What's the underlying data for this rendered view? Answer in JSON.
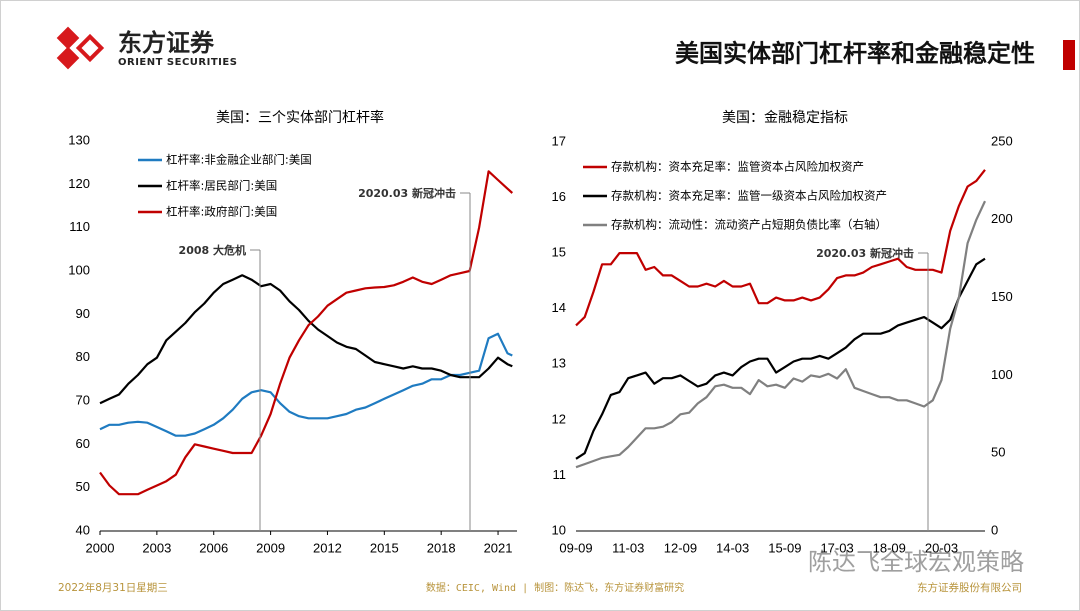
{
  "header": {
    "logo_cn": "东方证券",
    "logo_en": "ORIENT SECURITIES",
    "title": "美国实体部门杠杆率和金融稳定性"
  },
  "chart_data": [
    {
      "type": "line",
      "title": "美国：三个实体部门杠杆率",
      "x": [
        2000,
        2000.5,
        2001,
        2001.5,
        2002,
        2002.5,
        2003,
        2003.5,
        2004,
        2004.5,
        2005,
        2005.5,
        2006,
        2006.5,
        2007,
        2007.5,
        2008,
        2008.5,
        2009,
        2009.5,
        2010,
        2010.5,
        2011,
        2011.5,
        2012,
        2012.5,
        2013,
        2013.5,
        2014,
        2014.5,
        2015,
        2015.5,
        2016,
        2016.5,
        2017,
        2017.5,
        2018,
        2018.5,
        2019,
        2019.5,
        2020,
        2020.5,
        2021,
        2021.5,
        2021.75
      ],
      "xlim": [
        2000,
        2022
      ],
      "xticks": [
        2000,
        2003,
        2006,
        2009,
        2012,
        2015,
        2018,
        2021
      ],
      "ylim": [
        40,
        130
      ],
      "yticks": [
        40,
        50,
        60,
        70,
        80,
        90,
        100,
        110,
        120,
        130
      ],
      "legend": "upper left",
      "series": [
        {
          "name": "杠杆率:非金融企业部门:美国",
          "color": "#1f7bc1",
          "values": [
            63.5,
            64.5,
            64.5,
            65,
            65.2,
            65,
            64,
            63,
            62,
            62,
            62.5,
            63.5,
            64.5,
            66,
            68,
            70.5,
            72,
            72.5,
            72,
            69.5,
            67.5,
            66.5,
            66,
            66,
            66,
            66.5,
            67,
            68,
            68.5,
            69.5,
            70.5,
            71.5,
            72.5,
            73.5,
            74,
            75,
            75,
            76,
            76,
            76.5,
            77,
            84.5,
            85.5,
            81,
            80.5
          ]
        },
        {
          "name": "杠杆率:居民部门:美国",
          "color": "#000000",
          "values": [
            69.5,
            70.5,
            71.5,
            74,
            76,
            78.5,
            80,
            84,
            86,
            88,
            90.5,
            92.5,
            95,
            97,
            98,
            99,
            98,
            96.5,
            97,
            95.5,
            93,
            91,
            88.5,
            86.5,
            85,
            83.5,
            82.5,
            82,
            80.5,
            79,
            78.5,
            78,
            77.5,
            78,
            77.5,
            77.5,
            77,
            76,
            75.5,
            75.5,
            75.5,
            77.5,
            80,
            78.5,
            78
          ]
        },
        {
          "name": "杠杆率:政府部门:美国",
          "color": "#c00000",
          "values": [
            53.5,
            50.5,
            48.5,
            48.5,
            48.5,
            49.5,
            50.5,
            51.5,
            53,
            57,
            60,
            59.5,
            59,
            58.5,
            58,
            58,
            58,
            62,
            67,
            74,
            80,
            84,
            87.5,
            89.5,
            92,
            93.5,
            95,
            95.5,
            96,
            96.2,
            96.3,
            96.7,
            97.5,
            98.5,
            97.5,
            97,
            98,
            99,
            99.5,
            100,
            110,
            123,
            121,
            119,
            118
          ]
        }
      ],
      "annotations": [
        {
          "text": "2008 大危机"
        },
        {
          "text": "2020.03 新冠冲击"
        }
      ]
    },
    {
      "type": "line",
      "title": "美国：金融稳定指标",
      "categories": [
        "09-09",
        null,
        null,
        null,
        null,
        null,
        "11-03",
        null,
        null,
        null,
        null,
        null,
        "12-09",
        null,
        null,
        null,
        null,
        null,
        "14-03",
        null,
        null,
        null,
        null,
        null,
        "15-09",
        null,
        null,
        null,
        null,
        null,
        "17-03",
        null,
        null,
        null,
        null,
        null,
        "18-09",
        null,
        null,
        null,
        null,
        null,
        "20-03",
        null,
        null,
        null,
        null,
        null
      ],
      "ylim": [
        10,
        17
      ],
      "yticks": [
        10,
        11,
        12,
        13,
        14,
        15,
        16,
        17
      ],
      "y2lim": [
        0,
        250
      ],
      "y2ticks": [
        0,
        50,
        100,
        150,
        200,
        250
      ],
      "legend": "upper left",
      "series": [
        {
          "name": "存款机构：资本充足率：监管资本占风险加权资产",
          "color": "#c00000",
          "values": [
            13.7,
            13.85,
            14.3,
            14.8,
            14.8,
            15.0,
            15.0,
            15.0,
            14.7,
            14.75,
            14.6,
            14.6,
            14.5,
            14.4,
            14.4,
            14.45,
            14.4,
            14.5,
            14.4,
            14.4,
            14.45,
            14.1,
            14.1,
            14.2,
            14.15,
            14.15,
            14.2,
            14.15,
            14.2,
            14.35,
            14.55,
            14.6,
            14.6,
            14.65,
            14.75,
            14.8,
            14.85,
            14.9,
            14.75,
            14.7,
            14.7,
            14.7,
            14.65,
            15.4,
            15.85,
            16.2,
            16.3,
            16.5
          ]
        },
        {
          "name": "存款机构：资本充足率：监管一级资本占风险加权资产",
          "color": "#000000",
          "values": [
            11.3,
            11.4,
            11.8,
            12.1,
            12.45,
            12.5,
            12.75,
            12.8,
            12.85,
            12.65,
            12.75,
            12.75,
            12.8,
            12.7,
            12.6,
            12.65,
            12.8,
            12.85,
            12.8,
            12.95,
            13.05,
            13.1,
            13.1,
            12.85,
            12.95,
            13.05,
            13.1,
            13.1,
            13.15,
            13.1,
            13.2,
            13.3,
            13.45,
            13.55,
            13.55,
            13.55,
            13.6,
            13.7,
            13.75,
            13.8,
            13.85,
            13.75,
            13.65,
            13.8,
            14.2,
            14.5,
            14.8,
            14.9
          ]
        },
        {
          "name": "存款机构：流动性：流动资产占短期负债比率（右轴）",
          "color": "#808080",
          "axis": "y2",
          "values": [
            41,
            43,
            45,
            47,
            48,
            49,
            54,
            60,
            66,
            66,
            67,
            70,
            75,
            76,
            82,
            86,
            93,
            94,
            92,
            92,
            88,
            97,
            93,
            94,
            92,
            98,
            96,
            100,
            99,
            101,
            98,
            104,
            92,
            90,
            88,
            86,
            86,
            84,
            84,
            82,
            80,
            84,
            97,
            130,
            150,
            185,
            200,
            212
          ]
        }
      ],
      "annotations": [
        {
          "text": "2020.03 新冠冲击"
        }
      ]
    }
  ],
  "footer": {
    "date": "2022年8月31日星期三",
    "source": "数据：CEIC, Wind | 制图：陈达飞，东方证券财富研究",
    "watermark": "陈达飞全球宏观策略",
    "company": "东方证券股份有限公司"
  }
}
